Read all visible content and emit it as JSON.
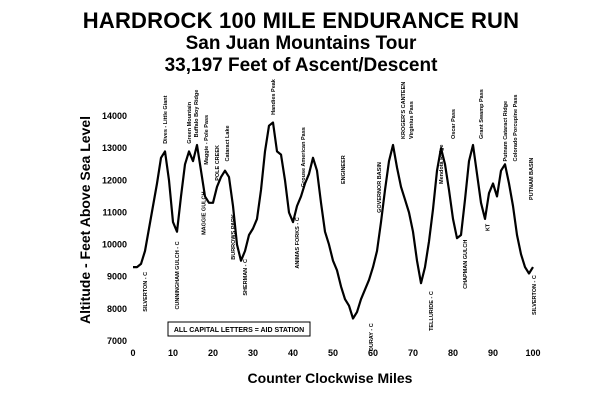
{
  "chart_data": {
    "type": "line",
    "title": "HARDROCK 100 MILE ENDURANCE RUN",
    "subtitle": "San Juan Mountains Tour",
    "subtitle2": "33,197 Feet of Ascent/Descent",
    "xlabel": "Counter Clockwise Miles",
    "ylabel": "Altitude - Feet Above Sea Level",
    "xlim": [
      0,
      101
    ],
    "ylim": [
      7000,
      14500
    ],
    "xticks": [
      0,
      10,
      20,
      30,
      40,
      50,
      60,
      70,
      80,
      90,
      100
    ],
    "yticks": [
      7000,
      8000,
      9000,
      10000,
      11000,
      12000,
      13000,
      14000
    ],
    "grid": false,
    "legend_note": "ALL CAPITAL LETTERS = AID STATION",
    "x": [
      0,
      1,
      2,
      3,
      4,
      5,
      6,
      7,
      8,
      9,
      10,
      11,
      12,
      13,
      14,
      15,
      16,
      17,
      18,
      19,
      20,
      21,
      22,
      23,
      24,
      25,
      26,
      27,
      28,
      29,
      30,
      31,
      32,
      33,
      34,
      35,
      36,
      37,
      38,
      39,
      40,
      41,
      42,
      43,
      44,
      45,
      46,
      47,
      48,
      49,
      50,
      51,
      52,
      53,
      54,
      55,
      56,
      57,
      58,
      59,
      60,
      61,
      62,
      63,
      64,
      65,
      66,
      67,
      68,
      69,
      70,
      71,
      72,
      73,
      74,
      75,
      76,
      77,
      78,
      79,
      80,
      81,
      82,
      83,
      84,
      85,
      86,
      87,
      88,
      89,
      90,
      91,
      92,
      93,
      94,
      95,
      96,
      97,
      98,
      99,
      100
    ],
    "y": [
      9300,
      9300,
      9400,
      9800,
      10500,
      11200,
      11900,
      12700,
      12900,
      12000,
      10700,
      10400,
      11500,
      12500,
      12900,
      12600,
      13100,
      12300,
      11500,
      11300,
      11300,
      11800,
      12100,
      12300,
      12100,
      11200,
      10000,
      9500,
      9800,
      10300,
      10500,
      10800,
      11700,
      12900,
      13700,
      13800,
      12900,
      12800,
      12000,
      11000,
      10700,
      11200,
      11500,
      11900,
      12200,
      12700,
      12300,
      11300,
      10400,
      10000,
      9500,
      9200,
      8700,
      8300,
      8100,
      7700,
      7900,
      8300,
      8600,
      8900,
      9300,
      9800,
      10700,
      11700,
      12600,
      13100,
      12400,
      11800,
      11400,
      11000,
      10400,
      9500,
      8800,
      9300,
      10100,
      11100,
      12300,
      13000,
      12500,
      11700,
      10800,
      10200,
      10300,
      11400,
      12600,
      13100,
      12200,
      11300,
      10800,
      11600,
      11900,
      11500,
      12300,
      12500,
      11900,
      11200,
      10300,
      9700,
      9300,
      9100,
      9300
    ],
    "annotations": [
      {
        "text": "SILVERTON - C",
        "x": 3,
        "y": 9400,
        "pos": "below"
      },
      {
        "text": "Dives - Little Giant",
        "x": 8,
        "y": 12950,
        "pos": "above"
      },
      {
        "text": "CUNNINGHAM GULCH - C",
        "x": 11,
        "y": 10350,
        "pos": "below"
      },
      {
        "text": "Green Mountain",
        "x": 14,
        "y": 12950,
        "pos": "above"
      },
      {
        "text": "Buffalo Boy Ridge",
        "x": 15.7,
        "y": 13150,
        "pos": "above"
      },
      {
        "text": "MAGGIE GULCH",
        "x": 17.6,
        "y": 11900,
        "pos": "below"
      },
      {
        "text": "Maggie - Pole Pass",
        "x": 18.2,
        "y": 12300,
        "pos": "above"
      },
      {
        "text": "POLE CREEK",
        "x": 21,
        "y": 11800,
        "pos": "above"
      },
      {
        "text": "Cataract Lake",
        "x": 23.5,
        "y": 12400,
        "pos": "above"
      },
      {
        "text": "BURROWS PARK",
        "x": 25,
        "y": 11200,
        "pos": "below"
      },
      {
        "text": "SHERMAN - C",
        "x": 28,
        "y": 9800,
        "pos": "below"
      },
      {
        "text": "Handies Peak",
        "x": 35,
        "y": 13850,
        "pos": "above"
      },
      {
        "text": "Grouse American Pass",
        "x": 42.5,
        "y": 11600,
        "pos": "above"
      },
      {
        "text": "ANIMAS FORKS - C",
        "x": 41,
        "y": 11100,
        "pos": "below"
      },
      {
        "text": "ENGINEER",
        "x": 52.5,
        "y": 11700,
        "pos": "above"
      },
      {
        "text": "OURAY - C",
        "x": 59.5,
        "y": 7800,
        "pos": "below"
      },
      {
        "text": "GOVERNOR BASIN",
        "x": 61.5,
        "y": 10800,
        "pos": "above"
      },
      {
        "text": "KROGER'S CANTEEN",
        "x": 67.5,
        "y": 13100,
        "pos": "above"
      },
      {
        "text": "Virginius Pass",
        "x": 69.5,
        "y": 13100,
        "pos": "above"
      },
      {
        "text": "TELLURIDE - C",
        "x": 74.5,
        "y": 8800,
        "pos": "below"
      },
      {
        "text": "Mendota Ridge",
        "x": 77,
        "y": 11700,
        "pos": "above"
      },
      {
        "text": "Oscar Pass",
        "x": 80,
        "y": 13100,
        "pos": "above"
      },
      {
        "text": "CHAPMAN GULCH",
        "x": 83,
        "y": 10400,
        "pos": "below"
      },
      {
        "text": "Grant Swamp Pass",
        "x": 87,
        "y": 13100,
        "pos": "above"
      },
      {
        "text": "KT",
        "x": 88.6,
        "y": 10900,
        "pos": "below"
      },
      {
        "text": "Putnam Cataract Ridge",
        "x": 93,
        "y": 12400,
        "pos": "above"
      },
      {
        "text": "Colorado Porcupine Pass",
        "x": 95.5,
        "y": 12400,
        "pos": "above"
      },
      {
        "text": "PUTNAM BASIN",
        "x": 99.5,
        "y": 11200,
        "pos": "above"
      },
      {
        "text": "SILVERTON - C",
        "x": 100.3,
        "y": 9300,
        "pos": "below"
      }
    ]
  }
}
